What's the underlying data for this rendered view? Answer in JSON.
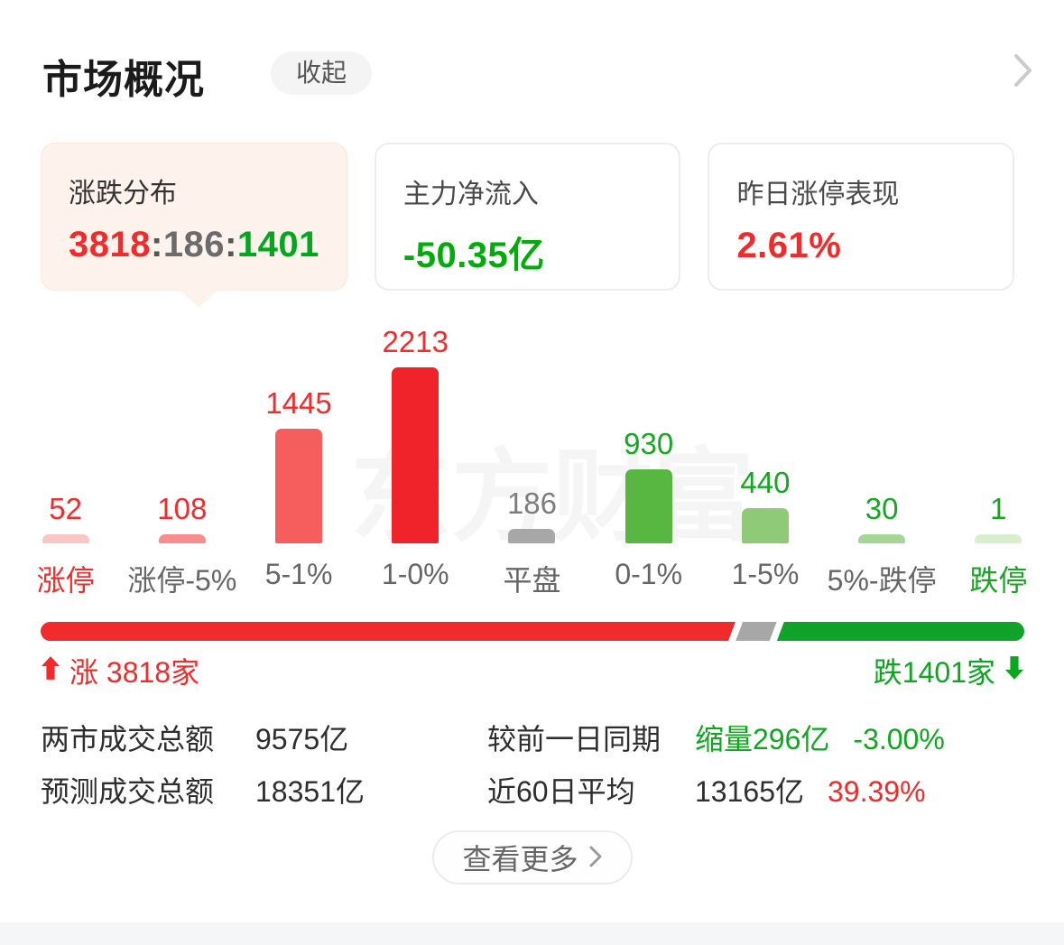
{
  "header": {
    "title": "市场概况",
    "collapse_label": "收起"
  },
  "cards": [
    {
      "title": "涨跌分布",
      "up": "3818",
      "flat": "186",
      "down": "1401",
      "sep": ":"
    },
    {
      "title": "主力净流入",
      "value": "-50.35亿"
    },
    {
      "title": "昨日涨停表现",
      "value": "2.61%"
    }
  ],
  "chart_data": {
    "type": "bar",
    "title": "涨跌分布",
    "categories": [
      "涨停",
      "涨停-5%",
      "5-1%",
      "1-0%",
      "平盘",
      "0-1%",
      "1-5%",
      "5%-跌停",
      "跌停"
    ],
    "values": [
      52,
      108,
      1445,
      2213,
      186,
      930,
      440,
      30,
      1
    ],
    "bar_colors": [
      "#f8c7c6",
      "#f78d8d",
      "#f65e5e",
      "#f0232a",
      "#a7a7a7",
      "#58b741",
      "#8fcb77",
      "#a6d695",
      "#d9edcf"
    ],
    "value_colors": [
      "#f22b2b",
      "#f22b2b",
      "#f22b2b",
      "#f22b2b",
      "#7d7d7d",
      "#16a620",
      "#16a620",
      "#16a620",
      "#16a620"
    ],
    "label_colors": [
      "#f22b2b",
      "#666666",
      "#666666",
      "#666666",
      "#666666",
      "#666666",
      "#666666",
      "#666666",
      "#16a620"
    ],
    "watermark": "东方财富",
    "ylim": [
      0,
      2213
    ],
    "grid": false,
    "legend": false
  },
  "ratio": {
    "up_count": 3818,
    "flat_count": 186,
    "down_count": 1401,
    "up_label": "涨 3818家",
    "down_label": "跌1401家",
    "up_color": "#f12b2b",
    "flat_color": "#a7a7a7",
    "down_color": "#0fa32a"
  },
  "stats": {
    "rows": [
      {
        "label1": "两市成交总额",
        "value1": "9575亿",
        "label2": "较前一日同期",
        "value2": "缩量296亿",
        "pct": "-3.00%"
      },
      {
        "label1": "预测成交总额",
        "value1": "18351亿",
        "label2": "近60日平均",
        "value2": "13165亿",
        "pct": "39.39%"
      }
    ]
  },
  "more": {
    "label": "查看更多"
  }
}
